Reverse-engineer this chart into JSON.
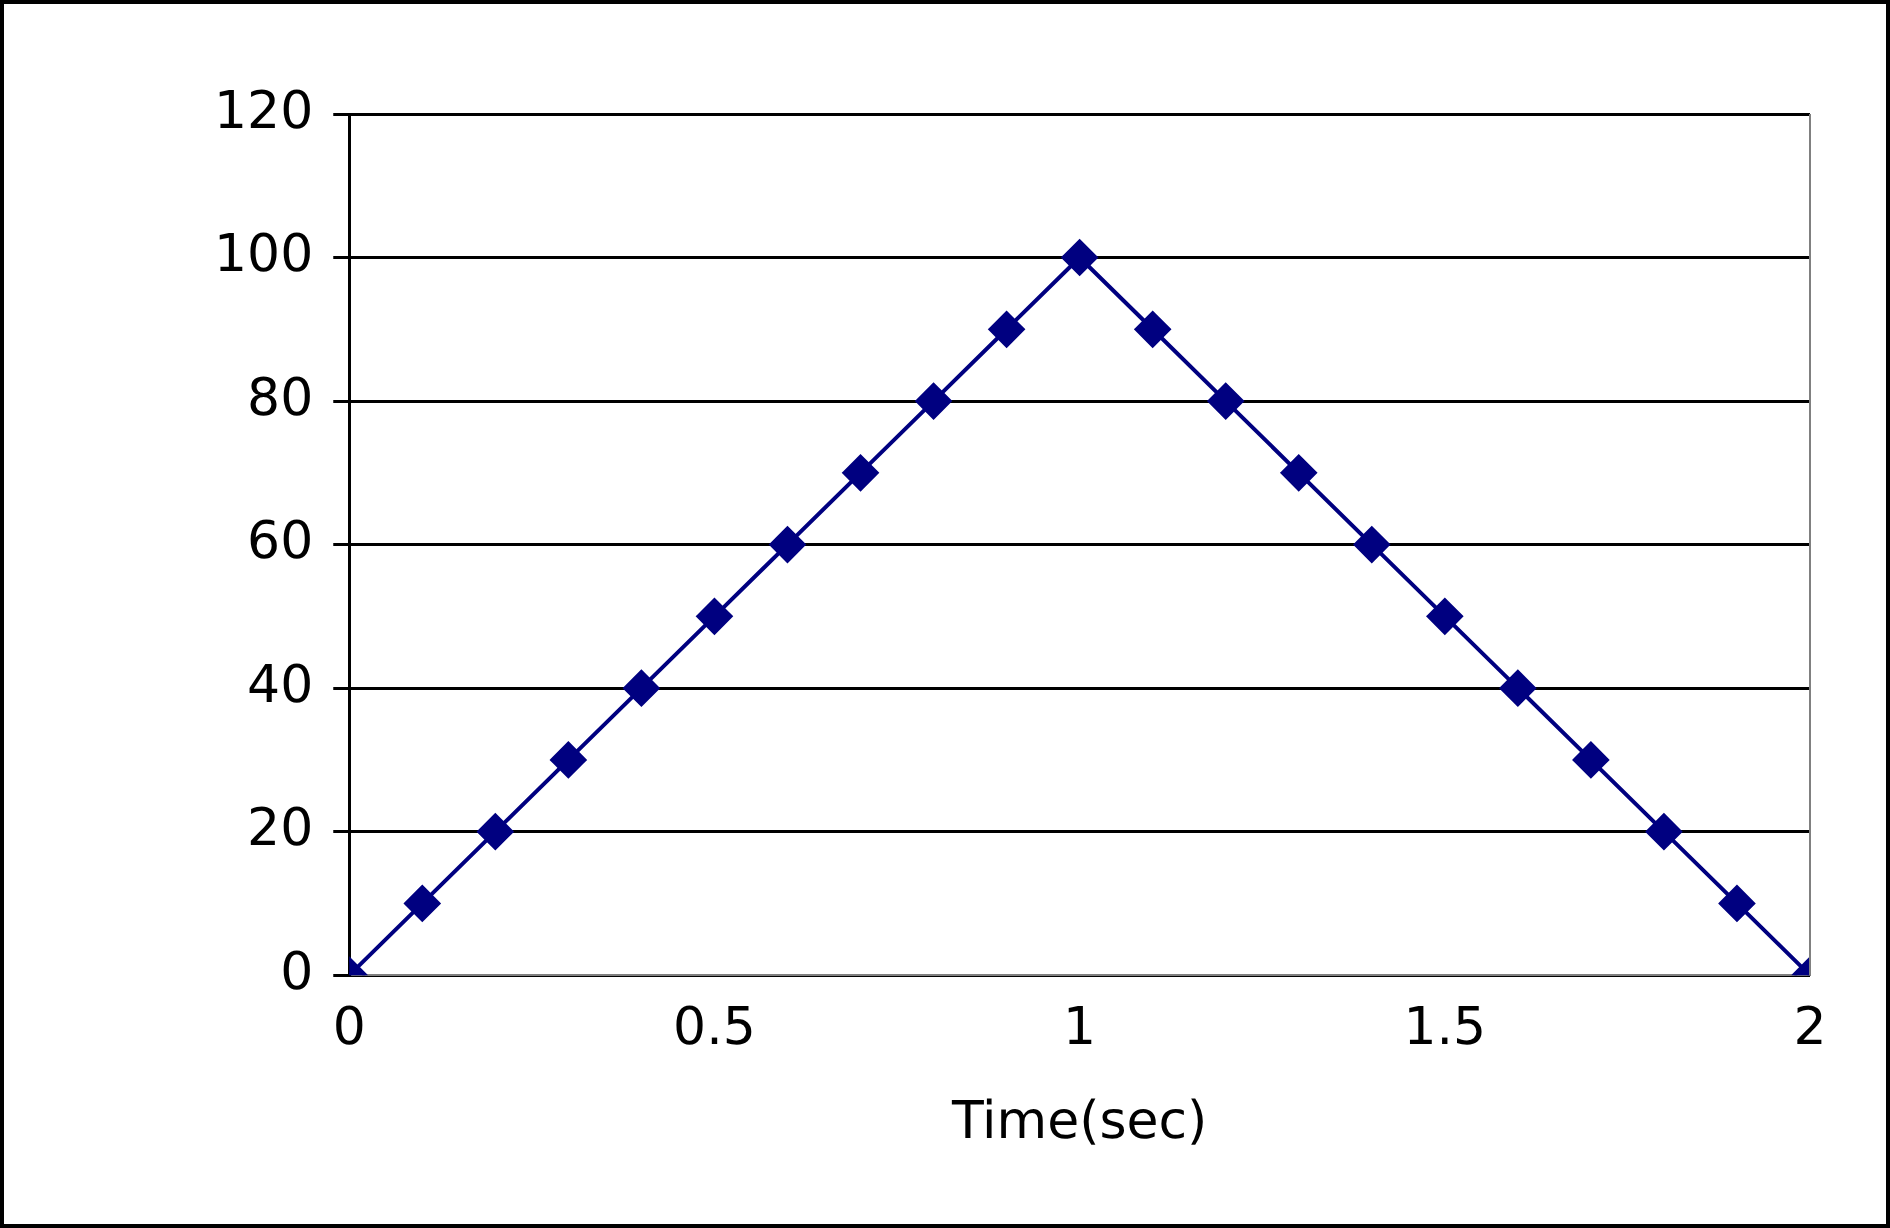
{
  "chart_data": {
    "type": "line",
    "xlabel": "Time(sec)",
    "x": [
      0,
      0.1,
      0.2,
      0.3,
      0.4,
      0.5,
      0.6,
      0.7,
      0.8,
      0.9,
      1,
      1.1,
      1.2,
      1.3,
      1.4,
      1.5,
      1.6,
      1.7,
      1.8,
      1.9,
      2
    ],
    "series": [
      {
        "color": "#000080",
        "values": [
          0,
          10,
          20,
          30,
          40,
          50,
          60,
          70,
          80,
          90,
          100,
          90,
          80,
          70,
          60,
          50,
          40,
          30,
          20,
          10,
          0
        ]
      }
    ],
    "xlim": [
      0,
      2
    ],
    "xticks": [
      0,
      0.5,
      1,
      1.5,
      2
    ],
    "ylim": [
      0,
      120
    ],
    "yticks": [
      0,
      20,
      40,
      60,
      80,
      100,
      120
    ],
    "grid": "y",
    "legend": false,
    "marker": "diamond",
    "line_style": "solid"
  }
}
